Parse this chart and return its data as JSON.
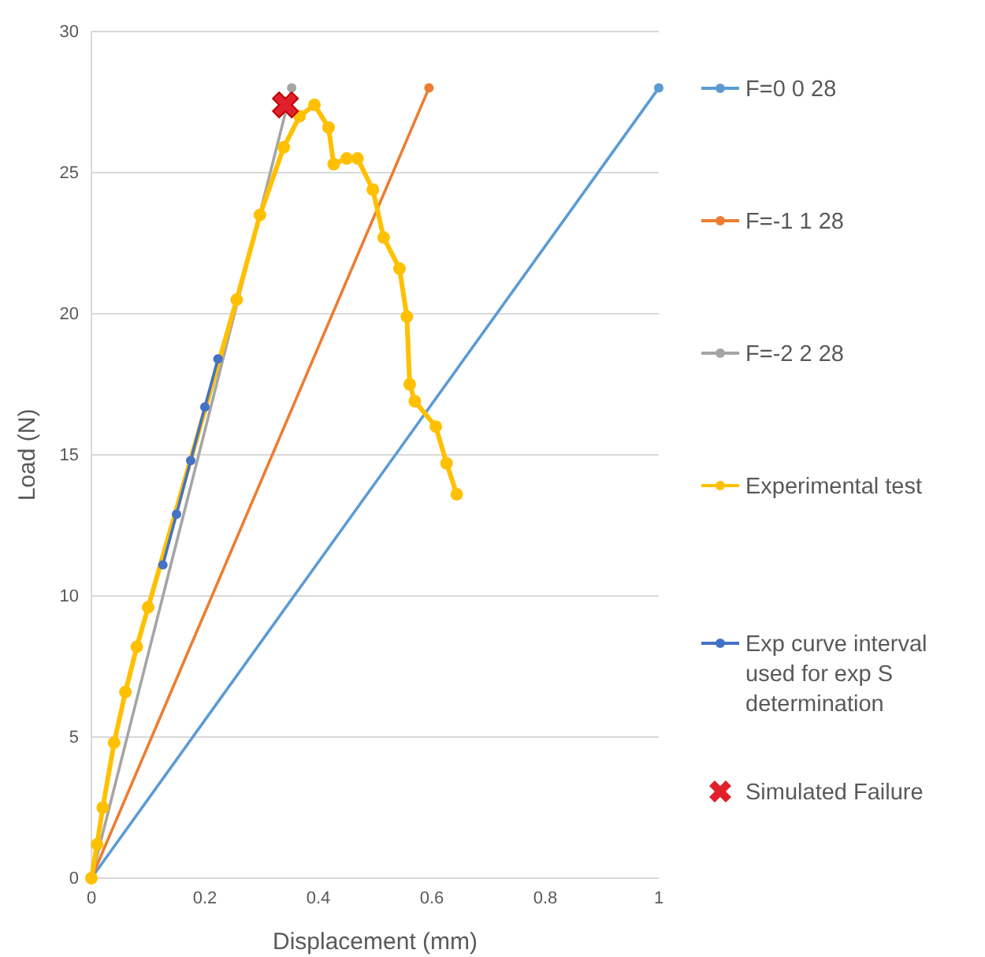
{
  "chart_data": {
    "type": "line",
    "xlabel": "Displacement (mm)",
    "ylabel": "Load (N)",
    "xlim": [
      0,
      1
    ],
    "ylim": [
      0,
      30
    ],
    "xticks": [
      0,
      0.2,
      0.4,
      0.6,
      0.8,
      1
    ],
    "yticks": [
      0,
      5,
      10,
      15,
      20,
      25,
      30
    ],
    "grid": "y",
    "legend": "right",
    "line_style": "solid",
    "series": [
      {
        "name": "F=0 0 28",
        "color": "#5b9bd5",
        "marker": "circle",
        "x": [
          0,
          1
        ],
        "values": [
          0,
          28
        ]
      },
      {
        "name": "F=-1 1 28",
        "color": "#ed7d31",
        "marker": "circle",
        "x": [
          0,
          0.595
        ],
        "values": [
          0,
          28
        ]
      },
      {
        "name": "F=-2 2 28",
        "color": "#a5a5a5",
        "marker": "circle",
        "x": [
          0,
          0.353
        ],
        "values": [
          0,
          28
        ]
      },
      {
        "name": "Experimental test",
        "color": "#ffc000",
        "marker": "circle",
        "x": [
          0,
          0.01,
          0.02,
          0.04,
          0.06,
          0.08,
          0.1,
          0.126,
          0.15,
          0.175,
          0.2,
          0.223,
          0.256,
          0.297,
          0.339,
          0.367,
          0.393,
          0.418,
          0.427,
          0.45,
          0.469,
          0.496,
          0.515,
          0.543,
          0.556,
          0.561,
          0.57,
          0.607,
          0.626,
          0.644
        ],
        "values": [
          0,
          1.2,
          2.5,
          4.8,
          6.6,
          8.2,
          9.6,
          null,
          null,
          null,
          null,
          null,
          20.5,
          23.5,
          25.9,
          27,
          27.4,
          26.6,
          25.3,
          25.5,
          25.5,
          24.4,
          22.7,
          21.6,
          19.9,
          17.5,
          16.9,
          16,
          14.7,
          13.6
        ]
      },
      {
        "name": "Exp curve interval used for exp S determination",
        "color": "#4472c4",
        "marker": "circle",
        "x": [
          0.126,
          0.15,
          0.175,
          0.2,
          0.223
        ],
        "values": [
          11.1,
          12.9,
          14.8,
          16.7,
          18.4
        ]
      },
      {
        "name": "Simulated Failure",
        "type": "scatter",
        "color": "#e0202a",
        "marker": "cross",
        "x": [
          0.342
        ],
        "values": [
          27.4
        ]
      }
    ]
  }
}
